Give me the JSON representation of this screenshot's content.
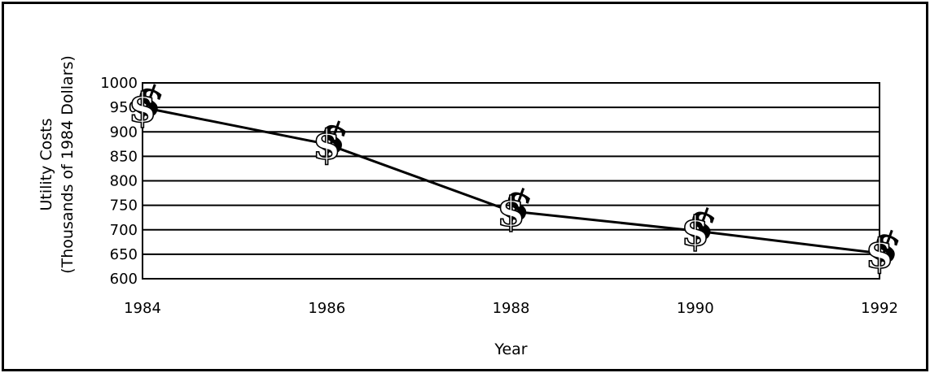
{
  "chart_data": {
    "type": "line",
    "title": "",
    "xlabel": "Year",
    "ylabel_line1": "Utility Costs",
    "ylabel_line2": "(Thousands of 1984 Dollars)",
    "x": [
      1984,
      1986,
      1988,
      1990,
      1992
    ],
    "y": [
      950,
      875,
      738,
      698,
      652
    ],
    "ylim": [
      600,
      1000
    ],
    "yticks": [
      600,
      650,
      700,
      750,
      800,
      850,
      900,
      950,
      1000
    ],
    "xticks": [
      1984,
      1986,
      1988,
      1990,
      1992
    ],
    "marker": "$",
    "grid": "horizontal",
    "line_color": "#000000"
  }
}
